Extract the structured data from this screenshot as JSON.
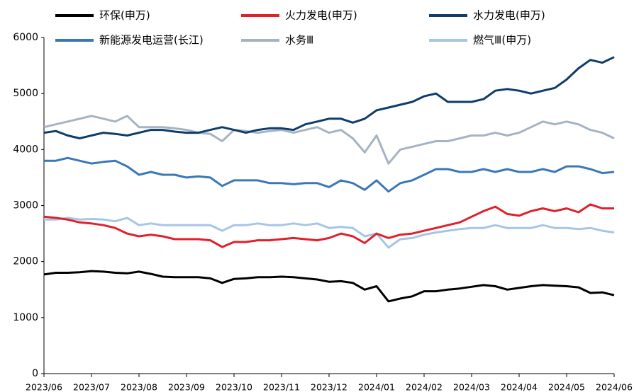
{
  "chart_data": {
    "type": "line",
    "categories": [
      "2023/06",
      null,
      null,
      null,
      "2023/07",
      null,
      null,
      null,
      "2023/08",
      null,
      null,
      null,
      "2023/09",
      null,
      null,
      null,
      "2023/10",
      null,
      null,
      null,
      "2023/11",
      null,
      null,
      null,
      "2023/12",
      null,
      null,
      null,
      "2024/01",
      null,
      null,
      null,
      "2024/02",
      null,
      null,
      null,
      "2024/03",
      null,
      null,
      null,
      "2024/04",
      null,
      null,
      null,
      "2024/05",
      null,
      null,
      null,
      "2024/06"
    ],
    "series": [
      {
        "name": "环保(申万)",
        "color": "#000000",
        "values": [
          1770,
          1800,
          1800,
          1810,
          1830,
          1820,
          1800,
          1790,
          1820,
          1780,
          1730,
          1720,
          1720,
          1720,
          1700,
          1620,
          1690,
          1700,
          1720,
          1720,
          1730,
          1720,
          1700,
          1680,
          1640,
          1650,
          1620,
          1500,
          1560,
          1290,
          1340,
          1380,
          1470,
          1470,
          1500,
          1520,
          1550,
          1580,
          1560,
          1500,
          1530,
          1560,
          1580,
          1570,
          1560,
          1540,
          1440,
          1450,
          1400
        ]
      },
      {
        "name": "火力发电(申万)",
        "color": "#e0202a",
        "values": [
          2800,
          2780,
          2750,
          2700,
          2680,
          2650,
          2600,
          2500,
          2450,
          2480,
          2450,
          2400,
          2400,
          2400,
          2380,
          2260,
          2350,
          2350,
          2380,
          2380,
          2400,
          2420,
          2400,
          2380,
          2420,
          2500,
          2450,
          2330,
          2500,
          2420,
          2480,
          2500,
          2550,
          2600,
          2650,
          2700,
          2800,
          2900,
          2980,
          2850,
          2820,
          2900,
          2950,
          2900,
          2950,
          2880,
          3020,
          2950,
          2950
        ]
      },
      {
        "name": "水力发电(申万)",
        "color": "#0d3d6b",
        "values": [
          4300,
          4330,
          4250,
          4200,
          4250,
          4300,
          4280,
          4250,
          4300,
          4350,
          4350,
          4320,
          4300,
          4300,
          4350,
          4400,
          4350,
          4300,
          4350,
          4380,
          4380,
          4350,
          4450,
          4500,
          4550,
          4550,
          4480,
          4550,
          4700,
          4750,
          4800,
          4850,
          4950,
          5000,
          4850,
          4850,
          4850,
          4900,
          5050,
          5080,
          5050,
          5000,
          5050,
          5100,
          5250,
          5450,
          5600,
          5550,
          5650
        ]
      },
      {
        "name": "新能源发电运营(长江)",
        "color": "#3a78b8",
        "values": [
          3800,
          3800,
          3850,
          3800,
          3750,
          3780,
          3800,
          3700,
          3550,
          3600,
          3550,
          3550,
          3500,
          3520,
          3500,
          3350,
          3450,
          3450,
          3450,
          3400,
          3400,
          3380,
          3400,
          3400,
          3330,
          3450,
          3400,
          3280,
          3450,
          3250,
          3400,
          3450,
          3550,
          3650,
          3650,
          3600,
          3600,
          3650,
          3600,
          3650,
          3600,
          3600,
          3650,
          3600,
          3700,
          3700,
          3650,
          3580,
          3600
        ]
      },
      {
        "name": "水务Ⅲ",
        "color": "#a6b3c3",
        "values": [
          4400,
          4450,
          4500,
          4550,
          4600,
          4550,
          4500,
          4600,
          4400,
          4400,
          4400,
          4380,
          4350,
          4300,
          4280,
          4150,
          4350,
          4330,
          4300,
          4330,
          4350,
          4300,
          4350,
          4400,
          4300,
          4350,
          4200,
          3950,
          4250,
          3750,
          4000,
          4050,
          4100,
          4150,
          4150,
          4200,
          4250,
          4250,
          4300,
          4250,
          4300,
          4400,
          4500,
          4450,
          4500,
          4450,
          4350,
          4300,
          4200
        ]
      },
      {
        "name": "燃气Ⅲ(申万)",
        "color": "#a7c5e5",
        "values": [
          2750,
          2750,
          2780,
          2750,
          2760,
          2750,
          2720,
          2780,
          2650,
          2680,
          2650,
          2650,
          2650,
          2650,
          2650,
          2550,
          2650,
          2650,
          2680,
          2650,
          2650,
          2680,
          2650,
          2680,
          2600,
          2620,
          2600,
          2450,
          2500,
          2250,
          2400,
          2420,
          2480,
          2520,
          2550,
          2580,
          2600,
          2600,
          2650,
          2600,
          2600,
          2600,
          2650,
          2600,
          2600,
          2580,
          2600,
          2550,
          2520
        ]
      }
    ],
    "ylim": [
      0,
      6000
    ],
    "yticks": [
      0,
      1000,
      2000,
      3000,
      4000,
      5000,
      6000
    ],
    "grid": false
  }
}
